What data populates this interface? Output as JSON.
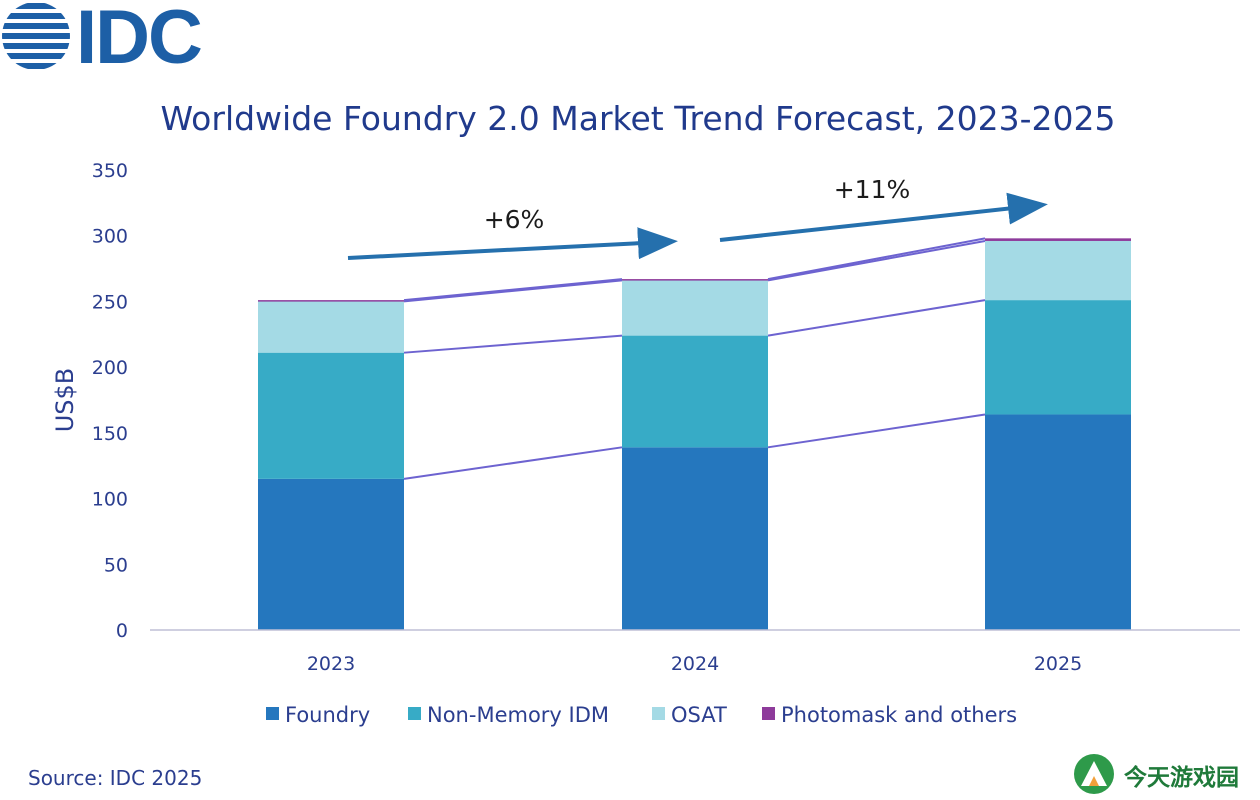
{
  "logo": {
    "text": "IDC"
  },
  "colors": {
    "foundry": "#2577be",
    "non_memory_idm": "#37abc6",
    "osat": "#a4dae5",
    "photomask": "#8e3b9b",
    "connector": "#6d63d0",
    "arrow": "#2570ad",
    "title": "#203a8c"
  },
  "chart_data": {
    "type": "bar",
    "stacked": true,
    "title": "Worldwide Foundry 2.0 Market Trend Forecast, 2023-2025",
    "ylabel": "US$B",
    "xlabel": "",
    "categories": [
      "2023",
      "2024",
      "2025"
    ],
    "ylim": [
      0,
      350
    ],
    "yticks": [
      0,
      50,
      100,
      150,
      200,
      250,
      300,
      350
    ],
    "grid": false,
    "legend": "bottom",
    "series": [
      {
        "name": "Foundry",
        "values": [
          115,
          139,
          164
        ]
      },
      {
        "name": "Non-Memory IDM",
        "values": [
          96,
          85,
          87
        ]
      },
      {
        "name": "OSAT",
        "values": [
          39,
          42,
          45
        ]
      },
      {
        "name": "Photomask and others",
        "values": [
          1,
          1,
          2
        ]
      }
    ],
    "annotations": [
      "+6%",
      "+11%"
    ]
  },
  "source": "Source: IDC 2025",
  "watermark": "今天游戏园"
}
